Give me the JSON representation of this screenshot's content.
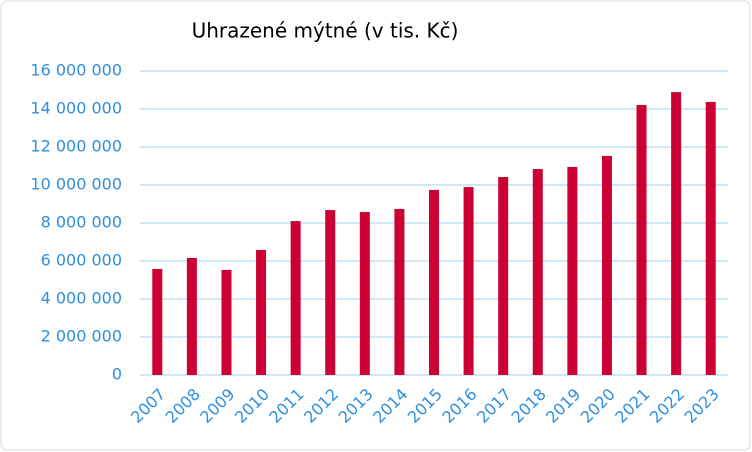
{
  "chart_data": {
    "type": "bar",
    "title": "Uhrazené mýtné (v tis. Kč)",
    "categories": [
      "2007",
      "2008",
      "2009",
      "2010",
      "2011",
      "2012",
      "2013",
      "2014",
      "2015",
      "2016",
      "2017",
      "2018",
      "2019",
      "2020",
      "2021",
      "2022",
      "2023"
    ],
    "values": [
      5580000,
      6160000,
      5530000,
      6580000,
      8100000,
      8680000,
      8580000,
      8740000,
      9740000,
      9890000,
      10420000,
      10840000,
      10950000,
      11530000,
      14210000,
      14890000,
      14370000
    ],
    "color": "#cc0033",
    "ylim": [
      0,
      16000000
    ],
    "yticks": [
      0,
      {
        "value": 2000000,
        "label": "2 000 000"
      },
      {
        "value": 4000000,
        "label": "4 000 000"
      },
      {
        "value": 6000000,
        "label": "6 000 000"
      },
      {
        "value": 8000000,
        "label": "8 000 000"
      },
      {
        "value": 10000000,
        "label": "10 000 000"
      },
      {
        "value": 12000000,
        "label": "12 000 000"
      },
      {
        "value": 14000000,
        "label": "14 000 000"
      },
      {
        "value": 16000000,
        "label": "16 000 000"
      }
    ],
    "grid": true
  }
}
